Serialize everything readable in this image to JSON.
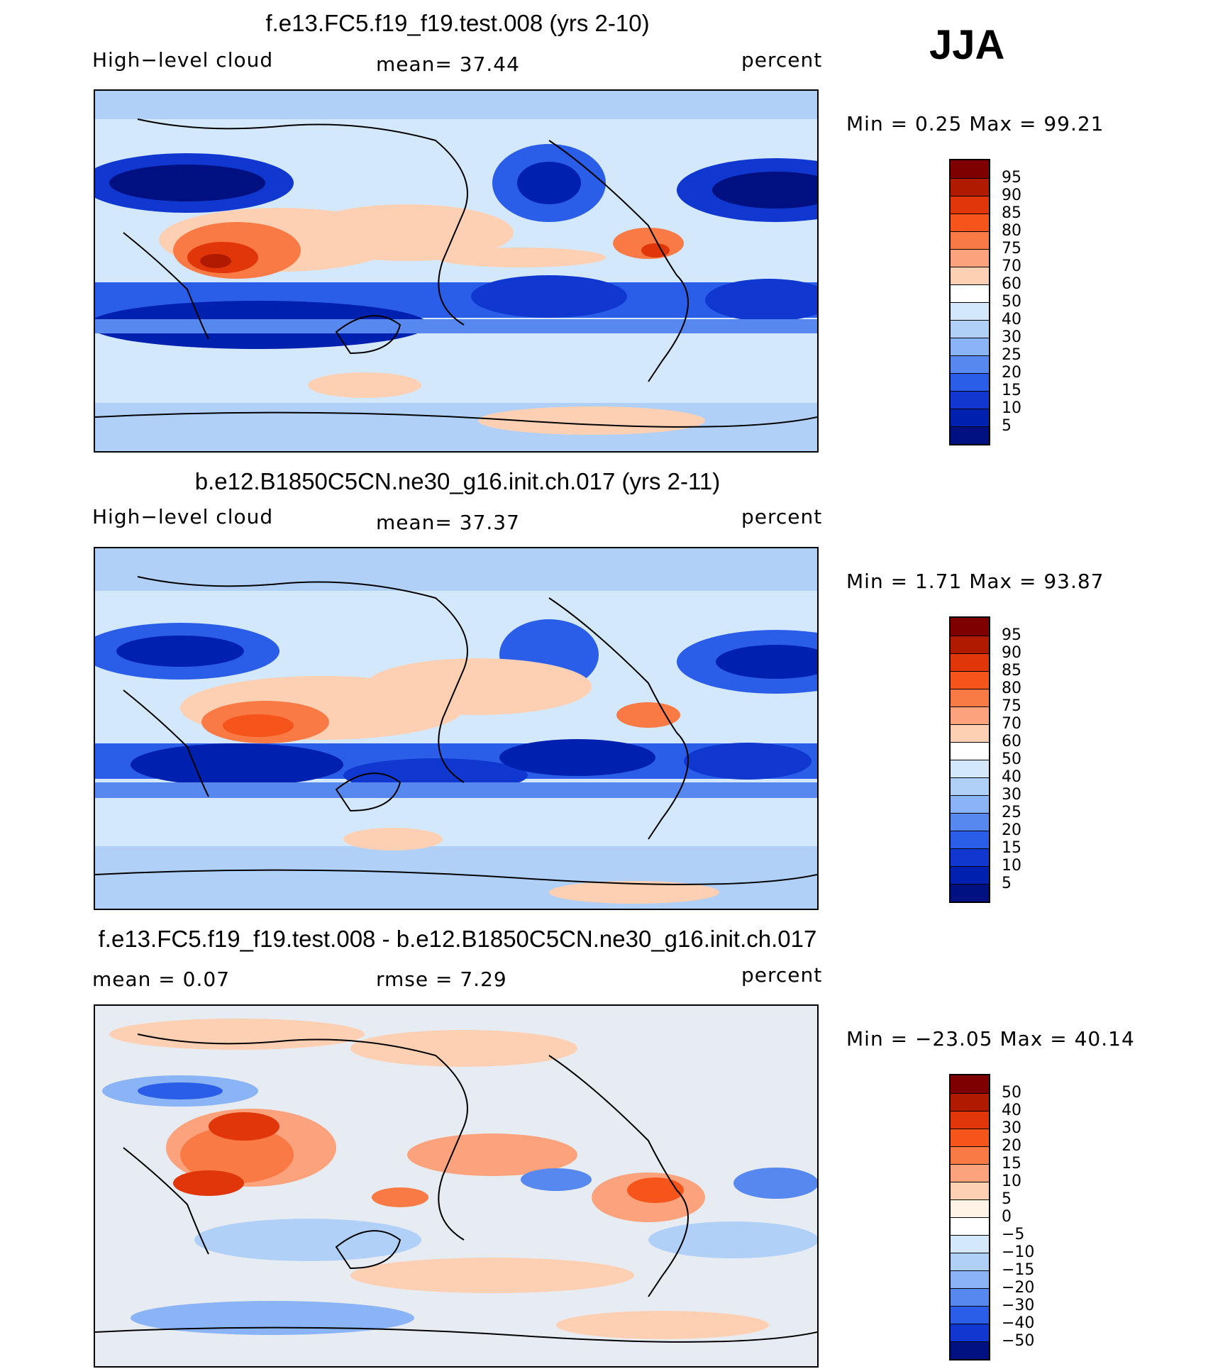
{
  "season": "JJA",
  "panels": [
    {
      "title": "f.e13.FC5.f19_f19.test.008 (yrs 2-10)",
      "left_label": "High−level cloud",
      "center_label": "mean=   37.44",
      "right_label": "percent",
      "minmax": "Min =    0.25  Max =   99.21",
      "levels": [
        "95",
        "90",
        "85",
        "80",
        "75",
        "70",
        "60",
        "50",
        "40",
        "30",
        "25",
        "20",
        "15",
        "10",
        "5"
      ],
      "palette": "abs"
    },
    {
      "title": "b.e12.B1850C5CN.ne30_g16.init.ch.017 (yrs 2-11)",
      "left_label": "High−level cloud",
      "center_label": "mean=   37.37",
      "right_label": "percent",
      "minmax": "Min =    1.71  Max =   93.87",
      "levels": [
        "95",
        "90",
        "85",
        "80",
        "75",
        "70",
        "60",
        "50",
        "40",
        "30",
        "25",
        "20",
        "15",
        "10",
        "5"
      ],
      "palette": "abs"
    },
    {
      "title": "f.e13.FC5.f19_f19.test.008 - b.e12.B1850C5CN.ne30_g16.init.ch.017",
      "left_label": "mean =     0.07",
      "center_label": "rmse =     7.29",
      "right_label": "percent",
      "minmax": "Min = −23.05  Max =   40.14",
      "levels": [
        "50",
        "40",
        "30",
        "20",
        "15",
        "10",
        "5",
        "0",
        "−5",
        "−10",
        "−15",
        "−20",
        "−30",
        "−40",
        "−50"
      ],
      "palette": "diff"
    }
  ],
  "colors": {
    "abs": [
      "#7f0000",
      "#b01a00",
      "#e0360a",
      "#f5551a",
      "#fa7a45",
      "#fca27c",
      "#fdd0b4",
      "#ffffff",
      "#d4e8fb",
      "#b0d0f8",
      "#8ab4f5",
      "#5688ef",
      "#2a5ee8",
      "#1038d0",
      "#0020b0",
      "#001080"
    ],
    "diff": [
      "#7f0000",
      "#b01a00",
      "#e0360a",
      "#f5551a",
      "#fa7a45",
      "#fca27c",
      "#fdd0b4",
      "#fff2e6",
      "#ffffff",
      "#d4e8fb",
      "#b0d0f8",
      "#8ab4f5",
      "#5688ef",
      "#2a5ee8",
      "#1038d0",
      "#001080"
    ]
  }
}
